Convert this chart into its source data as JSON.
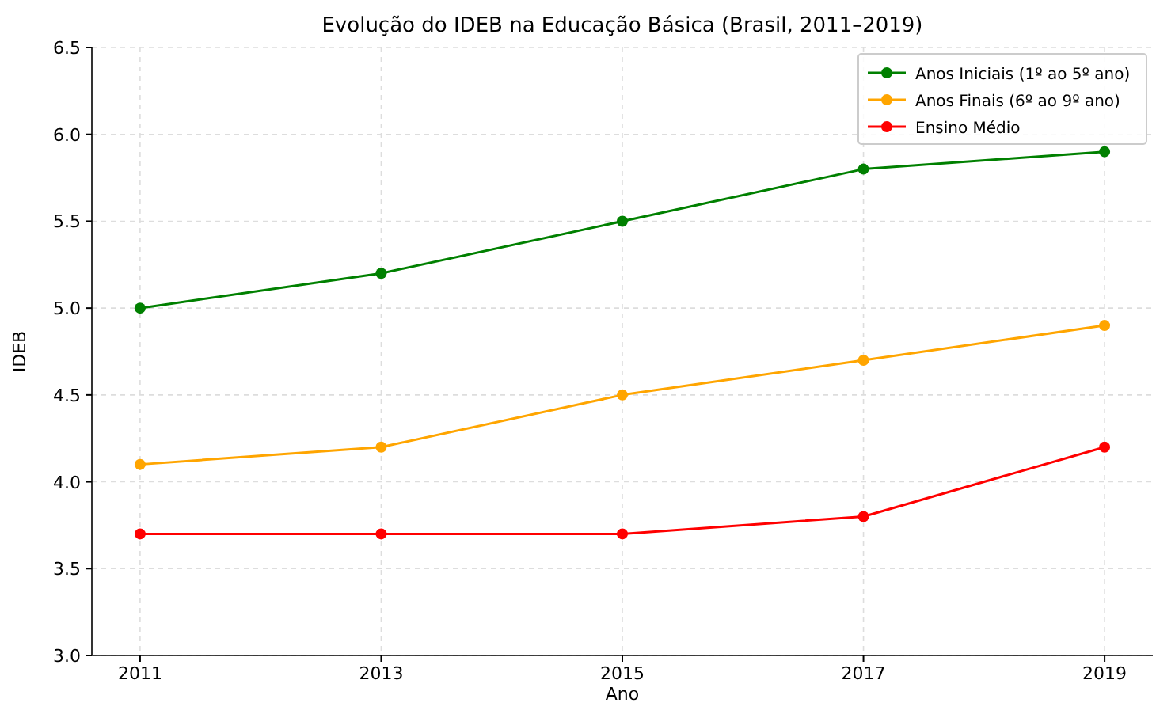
{
  "chart_data": {
    "type": "line",
    "title": "Evolução do IDEB na Educação Básica (Brasil, 2011–2019)",
    "xlabel": "Ano",
    "ylabel": "IDEB",
    "x": [
      2011,
      2013,
      2015,
      2017,
      2019
    ],
    "series": [
      {
        "name": "Anos Iniciais (1º ao 5º ano)",
        "color": "#008000",
        "values": [
          5.0,
          5.2,
          5.5,
          5.8,
          5.9
        ]
      },
      {
        "name": "Anos Finais (6º ao 9º ano)",
        "color": "#ffa500",
        "values": [
          4.1,
          4.2,
          4.5,
          4.7,
          4.9
        ]
      },
      {
        "name": "Ensino Médio",
        "color": "#ff0000",
        "values": [
          3.7,
          3.7,
          3.7,
          3.8,
          4.2
        ]
      }
    ],
    "xlim": [
      2010.6,
      2019.4
    ],
    "xticks": [
      2011,
      2013,
      2015,
      2017,
      2019
    ],
    "ylim": [
      3.0,
      6.5
    ],
    "yticks": [
      {
        "value": 3.0,
        "label": "3.0"
      },
      {
        "value": 3.5,
        "label": "3.5"
      },
      {
        "value": 4.0,
        "label": "4.0"
      },
      {
        "value": 4.5,
        "label": "4.5"
      },
      {
        "value": 5.0,
        "label": "5.0"
      },
      {
        "value": 5.5,
        "label": "5.5"
      },
      {
        "value": 6.0,
        "label": "6.0"
      },
      {
        "value": 6.5,
        "label": "6.5"
      }
    ],
    "grid": true,
    "legend": "top right",
    "marker": "circle",
    "line_style": "solid"
  }
}
